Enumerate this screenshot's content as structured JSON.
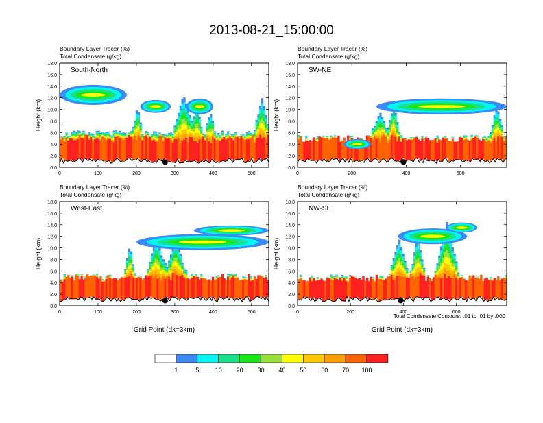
{
  "title": "2013-08-21_15:00:00",
  "colors": {
    "terrain": "#000000",
    "white": "#ffffff",
    "palette": [
      "#ffffff",
      "#3d8af7",
      "#00f5f5",
      "#19e08a",
      "#19e619",
      "#9bdf3a",
      "#ffff00",
      "#ffc800",
      "#ffa000",
      "#ff6400",
      "#ff2020"
    ]
  },
  "chart_data": {
    "type": "heatmap",
    "panels": [
      {
        "id": "south-north",
        "name": "South-North",
        "subtitle_line1": "Boundary Layer Tracer    (%)",
        "subtitle_line2": "Total Condensate    (g/kg)",
        "xlim": [
          0,
          545
        ],
        "xticks": [
          0,
          100,
          200,
          300,
          400,
          500
        ],
        "ylim": [
          0,
          18
        ],
        "yticks": [
          "0.0",
          "2.0",
          "4.0",
          "6.0",
          "8.0",
          "10.0",
          "12.0",
          "14.0",
          "16.0",
          "18.0"
        ],
        "ylabel": "Height (km)",
        "xlabel": "",
        "marker_x": 275,
        "marker_y": 0.9,
        "base_ceil": 5.8,
        "plumes": [
          {
            "x": 200,
            "top": 10.5,
            "w": 14
          },
          {
            "x": 320,
            "top": 12.5,
            "w": 30
          },
          {
            "x": 355,
            "top": 11.5,
            "w": 15
          },
          {
            "x": 390,
            "top": 9.5,
            "w": 14
          },
          {
            "x": 525,
            "top": 12,
            "w": 22
          }
        ],
        "clouds": [
          {
            "x0": 0,
            "x1": 175,
            "y": 12.5,
            "h": 3.2
          },
          {
            "x0": 210,
            "x1": 290,
            "y": 10.5,
            "h": 2.0
          },
          {
            "x0": 330,
            "x1": 400,
            "y": 10.5,
            "h": 2.5
          }
        ]
      },
      {
        "id": "sw-ne",
        "name": "SW-NE",
        "subtitle_line1": "Boundary Layer Tracer    (%)",
        "subtitle_line2": "Total Condensate    (g/kg)",
        "xlim": [
          0,
          770
        ],
        "xticks": [
          0,
          200,
          400,
          600
        ],
        "ylim": [
          0,
          18
        ],
        "yticks": [
          "0.0",
          "2.0",
          "4.0",
          "6.0",
          "8.0",
          "10.0",
          "12.0",
          "14.0",
          "16.0",
          "18.0"
        ],
        "ylabel": "Height (km)",
        "xlabel": "",
        "marker_x": 390,
        "marker_y": 0.9,
        "base_ceil": 5.0,
        "plumes": [
          {
            "x": 300,
            "top": 9.5,
            "w": 40
          },
          {
            "x": 350,
            "top": 11,
            "w": 25
          },
          {
            "x": 730,
            "top": 10.5,
            "w": 30
          }
        ],
        "clouds": [
          {
            "x0": 290,
            "x1": 770,
            "y": 10.5,
            "h": 2.5
          },
          {
            "x0": 170,
            "x1": 270,
            "y": 4.0,
            "h": 1.5
          }
        ]
      },
      {
        "id": "west-east",
        "name": "West-East",
        "subtitle_line1": "Boundary Layer Tracer    (%)",
        "subtitle_line2": "Total Condensate    (g/kg)",
        "xlim": [
          0,
          545
        ],
        "xticks": [
          0,
          100,
          200,
          300,
          400,
          500
        ],
        "ylim": [
          0,
          18
        ],
        "yticks": [
          "0.0",
          "2.0",
          "4.0",
          "6.0",
          "8.0",
          "10.0",
          "12.0",
          "14.0",
          "16.0",
          "18.0"
        ],
        "ylabel": "Height (km)",
        "xlabel": "Grid Point (dx=3km)",
        "marker_x": 275,
        "marker_y": 0.9,
        "base_ceil": 5.0,
        "plumes": [
          {
            "x": 250,
            "top": 11.8,
            "w": 30
          },
          {
            "x": 300,
            "top": 11.5,
            "w": 30
          },
          {
            "x": 180,
            "top": 10.5,
            "w": 15
          }
        ],
        "clouds": [
          {
            "x0": 200,
            "x1": 545,
            "y": 11.0,
            "h": 2.5
          },
          {
            "x0": 350,
            "x1": 545,
            "y": 13.0,
            "h": 1.5
          }
        ]
      },
      {
        "id": "nw-se",
        "name": "NW-SE",
        "subtitle_line1": "Boundary Layer Tracer    (%)",
        "subtitle_line2": "Total Condensate    (g/kg)",
        "xlim": [
          0,
          790
        ],
        "xticks": [
          0,
          200,
          400,
          600
        ],
        "ylim": [
          0,
          18
        ],
        "yticks": [
          "0.0",
          "2.0",
          "4.0",
          "6.0",
          "8.0",
          "10.0",
          "12.0",
          "14.0",
          "16.0",
          "18.0"
        ],
        "ylabel": "Height (km)",
        "xlabel": "Grid Point (dx=3km)",
        "marker_x": 390,
        "marker_y": 0.9,
        "base_ceil": 4.8,
        "plumes": [
          {
            "x": 380,
            "top": 11.5,
            "w": 40
          },
          {
            "x": 450,
            "top": 12,
            "w": 30
          },
          {
            "x": 560,
            "top": 14.5,
            "w": 50
          }
        ],
        "clouds": [
          {
            "x0": 380,
            "x1": 640,
            "y": 12.0,
            "h": 2.5
          },
          {
            "x0": 560,
            "x1": 680,
            "y": 13.5,
            "h": 1.5
          }
        ]
      }
    ],
    "footnote": "Total Condensate Contours: .01 to .01 by .000",
    "colorbar": {
      "labels": [
        "1",
        "5",
        "10",
        "20",
        "30",
        "40",
        "50",
        "60",
        "70",
        "100"
      ],
      "colors": [
        "#ffffff",
        "#3d8af7",
        "#00f5f5",
        "#19e08a",
        "#19e619",
        "#9bdf3a",
        "#ffff00",
        "#ffc800",
        "#ffa000",
        "#ff6400",
        "#ff2020"
      ]
    }
  }
}
